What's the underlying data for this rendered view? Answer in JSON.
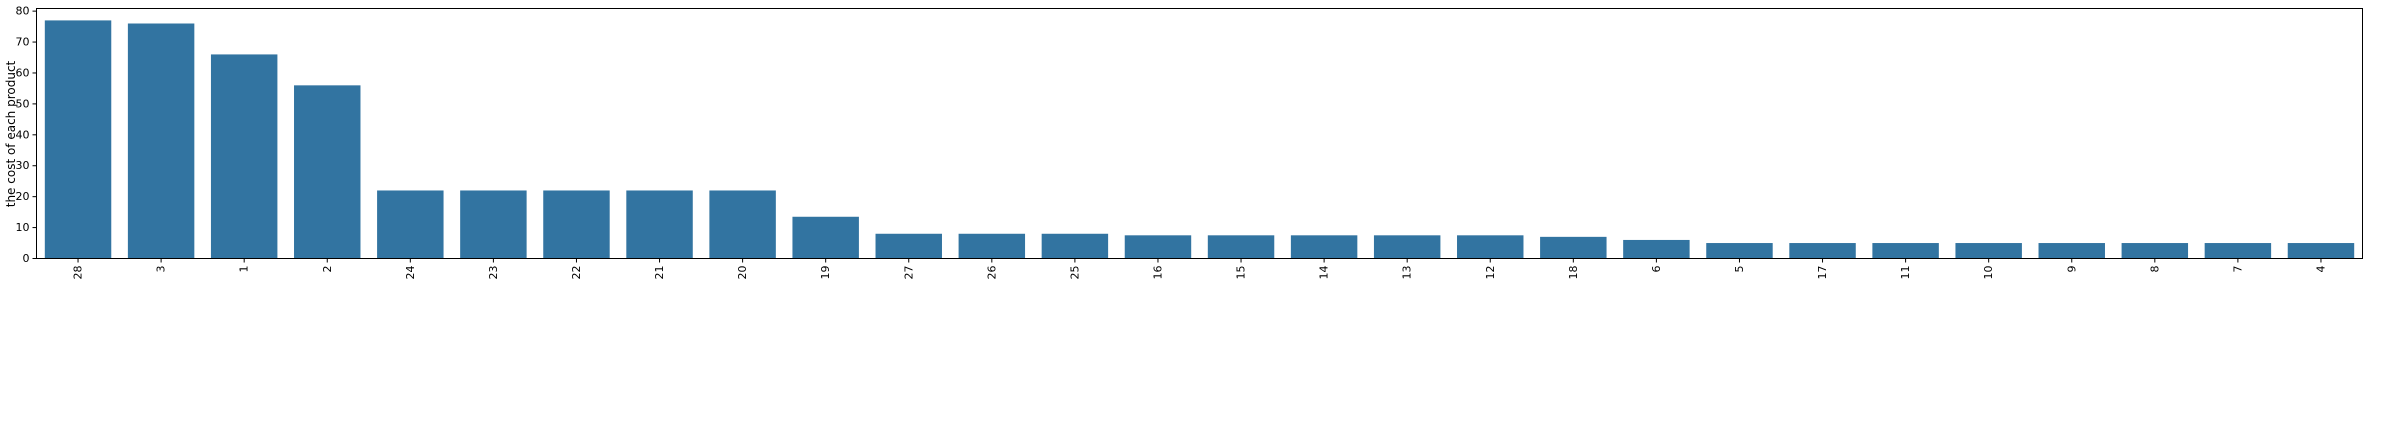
{
  "chart_data": {
    "type": "bar",
    "ylabel": "the cost of each product",
    "xlabel": "",
    "title": "",
    "categories": [
      "28",
      "3",
      "1",
      "2",
      "24",
      "23",
      "22",
      "21",
      "20",
      "19",
      "27",
      "26",
      "25",
      "16",
      "15",
      "14",
      "13",
      "12",
      "18",
      "6",
      "5",
      "17",
      "11",
      "10",
      "9",
      "8",
      "7",
      "4"
    ],
    "values": [
      77,
      76,
      66,
      56,
      22,
      22,
      22,
      22,
      22,
      13.5,
      8,
      8,
      8,
      7.5,
      7.5,
      7.5,
      7.5,
      7.5,
      7,
      6,
      5,
      5,
      5,
      5,
      5,
      5,
      5,
      5
    ],
    "ylim": [
      0,
      80.85
    ],
    "yticks": [
      0,
      10,
      20,
      30,
      40,
      50,
      60,
      70,
      80
    ],
    "bar_color": "#3274a1",
    "grid": false,
    "x_tick_rotation": 90
  }
}
